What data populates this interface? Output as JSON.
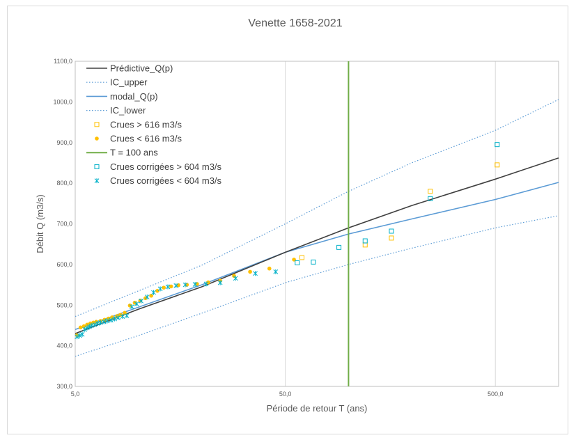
{
  "chart_data": {
    "type": "scatter",
    "title": "Venette 1658-2021",
    "xlabel": "Période de retour T (ans)",
    "ylabel": "Débit Q (m3/s)",
    "x_scale": "log",
    "xlim": [
      5,
      1000
    ],
    "ylim": [
      300,
      1100
    ],
    "x_ticks": [
      5,
      50,
      500
    ],
    "x_tick_labels": [
      "5,0",
      "50,0",
      "500,0"
    ],
    "y_ticks": [
      300,
      400,
      500,
      600,
      700,
      800,
      900,
      1000,
      1100
    ],
    "y_tick_labels": [
      "300,0",
      "400,0",
      "500,0",
      "600,0",
      "700,0",
      "800,0",
      "900,0",
      "1000,0",
      "1100,0"
    ],
    "grid": "vertical",
    "legend_position": "top-left",
    "series": [
      {
        "name": "Prédictive_Q(p)",
        "kind": "line",
        "color": "#404040",
        "x": [
          5,
          10,
          20,
          50,
          100,
          200,
          500,
          1000
        ],
        "y": [
          430,
          490,
          545,
          630,
          690,
          745,
          810,
          862
        ]
      },
      {
        "name": "IC_upper",
        "kind": "line-dotted",
        "color": "#5b9bd5",
        "x": [
          5,
          10,
          20,
          50,
          100,
          200,
          500,
          1000
        ],
        "y": [
          472,
          535,
          598,
          700,
          780,
          850,
          930,
          1006
        ]
      },
      {
        "name": "modal_Q(p)",
        "kind": "line",
        "color": "#5b9bd5",
        "x": [
          5,
          10,
          20,
          50,
          100,
          200,
          500,
          1000
        ],
        "y": [
          440,
          495,
          550,
          630,
          675,
          712,
          760,
          802
        ]
      },
      {
        "name": "IC_lower",
        "kind": "line-dotted",
        "color": "#5b9bd5",
        "x": [
          5,
          10,
          20,
          50,
          100,
          200,
          500,
          1000
        ],
        "y": [
          374,
          425,
          480,
          555,
          600,
          640,
          690,
          720
        ]
      },
      {
        "name": "Crues > 616 m3/s",
        "kind": "marker-square-open",
        "color": "#ffc000",
        "x": [
          60,
          120,
          160,
          245,
          510
        ],
        "y": [
          617,
          648,
          665,
          780,
          845
        ]
      },
      {
        "name": "Crues < 616 m3/s",
        "kind": "marker-circle",
        "color": "#ffc000",
        "x": [
          5.1,
          5.3,
          5.5,
          5.7,
          5.9,
          6.1,
          6.3,
          6.6,
          6.9,
          7.2,
          7.5,
          7.9,
          8.2,
          8.6,
          9.1,
          9.6,
          10.2,
          10.8,
          11.5,
          12.3,
          13.2,
          14.3,
          15.5,
          17,
          19,
          21.5,
          24.5,
          28.5,
          34,
          42,
          55
        ],
        "y": [
          426,
          445,
          448,
          452,
          455,
          457,
          459,
          461,
          464,
          467,
          470,
          473,
          476,
          481,
          499,
          506,
          511,
          517,
          523,
          535,
          543,
          546,
          549,
          550,
          552,
          556,
          560,
          572,
          582,
          590,
          612
        ]
      },
      {
        "name": "T = 100 ans",
        "kind": "vline",
        "color": "#70ad47",
        "x": [
          100,
          100
        ],
        "y": [
          300,
          1100
        ]
      },
      {
        "name": "Crues corrigées > 604 m3/s",
        "kind": "marker-square-open",
        "color": "#00b0c8",
        "x": [
          57,
          68,
          90,
          120,
          160,
          245,
          510
        ],
        "y": [
          604,
          606,
          642,
          658,
          682,
          762,
          895
        ]
      },
      {
        "name": "Crues corrigées < 604 m3/s",
        "kind": "marker-asterisk",
        "color": "#00b0c8",
        "x": [
          5.1,
          5.25,
          5.4,
          5.55,
          5.7,
          5.85,
          6.0,
          6.2,
          6.4,
          6.6,
          6.85,
          7.1,
          7.4,
          7.7,
          8.0,
          8.4,
          8.8,
          9.3,
          9.8,
          10.3,
          11,
          11.8,
          12.7,
          13.8,
          15.1,
          16.7,
          18.6,
          21,
          24.5,
          29,
          36,
          45
        ],
        "y": [
          422,
          425,
          428,
          440,
          444,
          447,
          450,
          452,
          455,
          457,
          459,
          461,
          463,
          466,
          469,
          472,
          474,
          496,
          503,
          510,
          520,
          531,
          540,
          545,
          548,
          550,
          551,
          552,
          555,
          566,
          578,
          582
        ]
      }
    ]
  }
}
